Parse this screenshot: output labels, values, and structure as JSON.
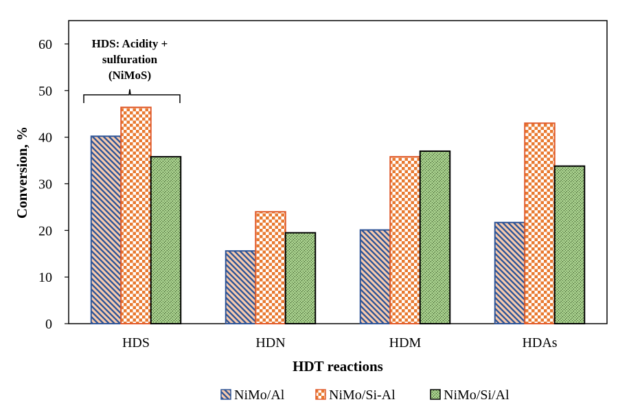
{
  "chart_data": {
    "type": "bar",
    "categories": [
      "HDS",
      "HDN",
      "HDM",
      "HDAs"
    ],
    "series": [
      {
        "name": "NiMo/Al",
        "values": [
          40.2,
          15.6,
          20.1,
          21.7
        ],
        "colors": {
          "fill": "#f8cbad",
          "stroke": "#2f5597",
          "hatch": "#2f5597"
        },
        "pattern": "diagonal"
      },
      {
        "name": "NiMo/Si-Al",
        "values": [
          46.4,
          24.0,
          35.8,
          43.0
        ],
        "colors": {
          "fill": "#ffffff",
          "stroke": "#e05a2b",
          "hatch": "#e8792f"
        },
        "pattern": "checker"
      },
      {
        "name": "NiMo/Si/Al",
        "values": [
          35.8,
          19.5,
          37.0,
          33.8
        ],
        "colors": {
          "fill": "#a9d18e",
          "stroke": "#000000",
          "hatch": "#000000"
        },
        "pattern": "dotted-diagonal"
      }
    ],
    "xlabel": "HDT reactions",
    "ylabel": "Conversion, %",
    "ylim": [
      0,
      65
    ],
    "yticks": [
      0,
      10,
      20,
      30,
      40,
      50,
      60
    ],
    "grid": false,
    "legend_position": "bottom",
    "annotation": {
      "lines": [
        "HDS: Acidity +",
        "sulfuration",
        "(NiMoS)"
      ],
      "category": "HDS"
    }
  }
}
